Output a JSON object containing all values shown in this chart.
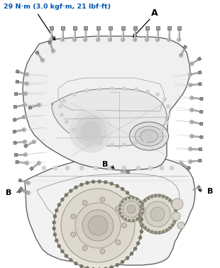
{
  "title_text": "29 N·m (3.0 kgf·m, 21 lbf·ft)",
  "title_color": "#0055AA",
  "label_A": "A",
  "label_B": "B",
  "bg_color": "#ffffff",
  "line_color": "#444444",
  "bolt_gray": "#999999",
  "bolt_dark": "#555555",
  "arrow_color": "#000000",
  "label_color": "#000000",
  "figsize": [
    3.1,
    3.78
  ],
  "dpi": 100
}
